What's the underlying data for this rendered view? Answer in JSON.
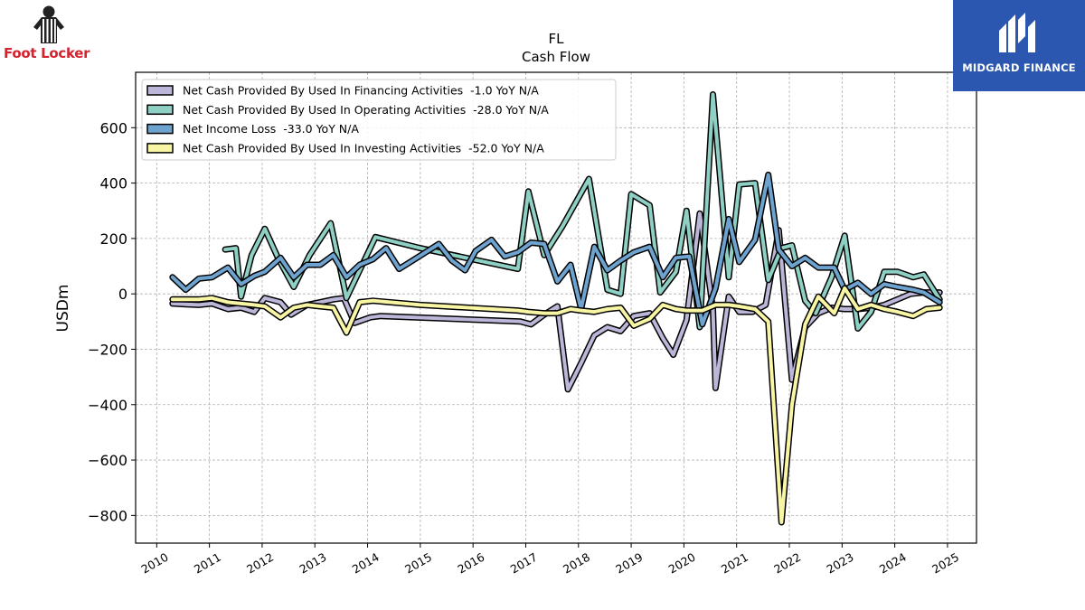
{
  "logos": {
    "left_brand": "Foot Locker",
    "right_brand": "MIDGARD FINANCE",
    "left_icon": "referee-mascot-icon",
    "right_icon": "midgard-m-icon"
  },
  "chart_data": {
    "type": "line",
    "title": "FL",
    "subtitle": "Cash Flow",
    "xlabel": "",
    "ylabel": "USDm",
    "xlim": [
      2009.6,
      2025.55
    ],
    "ylim": [
      -900,
      800
    ],
    "x_ticks": [
      "2010",
      "2011",
      "2012",
      "2013",
      "2014",
      "2015",
      "2016",
      "2017",
      "2018",
      "2019",
      "2020",
      "2021",
      "2022",
      "2023",
      "2024",
      "2025"
    ],
    "y_ticks": [
      -800,
      -600,
      -400,
      -200,
      0,
      200,
      400,
      600
    ],
    "y_tick_labels": [
      "−800",
      "−600",
      "−400",
      "−200",
      "0",
      "200",
      "400",
      "600"
    ],
    "grid": true,
    "legend_position": "top-left",
    "series": [
      {
        "name": "Net Cash Provided By Used In Financing Activities  -1.0 YoY N/A",
        "color": "#bcb6d8",
        "points": [
          [
            2010.3,
            -35
          ],
          [
            2010.55,
            -38
          ],
          [
            2010.8,
            -40
          ],
          [
            2011.05,
            -35
          ],
          [
            2011.35,
            -55
          ],
          [
            2011.6,
            -50
          ],
          [
            2011.85,
            -65
          ],
          [
            2012.05,
            -15
          ],
          [
            2012.35,
            -30
          ],
          [
            2012.55,
            -75
          ],
          [
            2012.85,
            -40
          ],
          [
            2013.1,
            -30
          ],
          [
            2013.35,
            -20
          ],
          [
            2013.55,
            -15
          ],
          [
            2013.75,
            -105
          ],
          [
            2014.05,
            -85
          ],
          [
            2014.25,
            -80
          ],
          [
            2016.9,
            -100
          ],
          [
            2017.1,
            -110
          ],
          [
            2017.35,
            -75
          ],
          [
            2017.6,
            -45
          ],
          [
            2017.8,
            -345
          ],
          [
            2018.05,
            -250
          ],
          [
            2018.3,
            -150
          ],
          [
            2018.55,
            -120
          ],
          [
            2018.8,
            -135
          ],
          [
            2019.05,
            -80
          ],
          [
            2019.35,
            -70
          ],
          [
            2019.6,
            -160
          ],
          [
            2019.8,
            -220
          ],
          [
            2020.05,
            -95
          ],
          [
            2020.3,
            290
          ],
          [
            2020.55,
            -55
          ],
          [
            2020.6,
            -340
          ],
          [
            2020.85,
            -10
          ],
          [
            2021.05,
            -65
          ],
          [
            2021.3,
            -65
          ],
          [
            2021.55,
            -40
          ],
          [
            2021.8,
            230
          ],
          [
            2022.05,
            -310
          ],
          [
            2022.3,
            -120
          ],
          [
            2022.55,
            -70
          ],
          [
            2022.8,
            -50
          ],
          [
            2023.05,
            -55
          ],
          [
            2023.3,
            -55
          ],
          [
            2023.55,
            -50
          ],
          [
            2023.8,
            -40
          ],
          [
            2024.05,
            -20
          ],
          [
            2024.3,
            0
          ],
          [
            2024.55,
            5
          ],
          [
            2024.85,
            5
          ]
        ]
      },
      {
        "name": "Net Cash Provided By Used In Operating Activities  -28.0 YoY N/A",
        "color": "#8fd0c4",
        "points": [
          [
            2011.3,
            160
          ],
          [
            2011.5,
            165
          ],
          [
            2011.6,
            -10
          ],
          [
            2011.8,
            140
          ],
          [
            2012.05,
            235
          ],
          [
            2012.3,
            130
          ],
          [
            2012.6,
            25
          ],
          [
            2012.9,
            140
          ],
          [
            2013.3,
            255
          ],
          [
            2013.6,
            -15
          ],
          [
            2014.15,
            205
          ],
          [
            2015.0,
            165
          ],
          [
            2016.85,
            90
          ],
          [
            2017.05,
            370
          ],
          [
            2017.35,
            140
          ],
          [
            2017.7,
            245
          ],
          [
            2018.2,
            415
          ],
          [
            2018.55,
            15
          ],
          [
            2018.8,
            0
          ],
          [
            2019.0,
            360
          ],
          [
            2019.35,
            320
          ],
          [
            2019.55,
            5
          ],
          [
            2019.85,
            80
          ],
          [
            2020.05,
            300
          ],
          [
            2020.3,
            -120
          ],
          [
            2020.55,
            720
          ],
          [
            2020.85,
            60
          ],
          [
            2021.05,
            395
          ],
          [
            2021.35,
            400
          ],
          [
            2021.6,
            50
          ],
          [
            2021.85,
            165
          ],
          [
            2022.05,
            175
          ],
          [
            2022.3,
            -25
          ],
          [
            2022.5,
            -70
          ],
          [
            2022.8,
            60
          ],
          [
            2023.05,
            210
          ],
          [
            2023.3,
            -125
          ],
          [
            2023.55,
            -65
          ],
          [
            2023.8,
            80
          ],
          [
            2024.05,
            80
          ],
          [
            2024.35,
            60
          ],
          [
            2024.55,
            70
          ],
          [
            2024.85,
            -20
          ]
        ]
      },
      {
        "name": "Net Income Loss  -33.0 YoY N/A",
        "color": "#6fa3cf",
        "points": [
          [
            2010.3,
            60
          ],
          [
            2010.55,
            15
          ],
          [
            2010.8,
            55
          ],
          [
            2011.05,
            60
          ],
          [
            2011.35,
            95
          ],
          [
            2011.6,
            35
          ],
          [
            2011.85,
            65
          ],
          [
            2012.05,
            80
          ],
          [
            2012.35,
            130
          ],
          [
            2012.6,
            60
          ],
          [
            2012.85,
            105
          ],
          [
            2013.1,
            105
          ],
          [
            2013.35,
            140
          ],
          [
            2013.6,
            60
          ],
          [
            2013.85,
            105
          ],
          [
            2014.1,
            125
          ],
          [
            2014.35,
            165
          ],
          [
            2014.6,
            90
          ],
          [
            2014.85,
            120
          ],
          [
            2015.1,
            150
          ],
          [
            2015.35,
            180
          ],
          [
            2015.6,
            120
          ],
          [
            2015.85,
            85
          ],
          [
            2016.05,
            155
          ],
          [
            2016.35,
            195
          ],
          [
            2016.6,
            135
          ],
          [
            2016.85,
            150
          ],
          [
            2017.1,
            185
          ],
          [
            2017.35,
            180
          ],
          [
            2017.6,
            45
          ],
          [
            2017.85,
            105
          ],
          [
            2018.05,
            -55
          ],
          [
            2018.3,
            170
          ],
          [
            2018.55,
            85
          ],
          [
            2018.8,
            120
          ],
          [
            2019.05,
            150
          ],
          [
            2019.35,
            170
          ],
          [
            2019.6,
            60
          ],
          [
            2019.85,
            130
          ],
          [
            2020.1,
            135
          ],
          [
            2020.35,
            -110
          ],
          [
            2020.6,
            20
          ],
          [
            2020.85,
            270
          ],
          [
            2021.05,
            115
          ],
          [
            2021.35,
            195
          ],
          [
            2021.6,
            430
          ],
          [
            2021.8,
            160
          ],
          [
            2022.05,
            100
          ],
          [
            2022.3,
            130
          ],
          [
            2022.55,
            95
          ],
          [
            2022.85,
            95
          ],
          [
            2023.05,
            15
          ],
          [
            2023.3,
            40
          ],
          [
            2023.55,
            0
          ],
          [
            2023.8,
            35
          ],
          [
            2024.05,
            25
          ],
          [
            2024.35,
            15
          ],
          [
            2024.55,
            5
          ],
          [
            2024.85,
            -30
          ]
        ]
      },
      {
        "name": "Net Cash Provided By Used In Investing Activities  -52.0 YoY N/A",
        "color": "#f8f5a4",
        "points": [
          [
            2010.3,
            -20
          ],
          [
            2010.55,
            -20
          ],
          [
            2010.8,
            -20
          ],
          [
            2011.05,
            -15
          ],
          [
            2011.35,
            -30
          ],
          [
            2011.6,
            -35
          ],
          [
            2011.85,
            -40
          ],
          [
            2012.05,
            -45
          ],
          [
            2012.35,
            -85
          ],
          [
            2012.6,
            -50
          ],
          [
            2012.85,
            -40
          ],
          [
            2013.1,
            -45
          ],
          [
            2013.35,
            -50
          ],
          [
            2013.6,
            -140
          ],
          [
            2013.85,
            -30
          ],
          [
            2014.1,
            -25
          ],
          [
            2015.0,
            -40
          ],
          [
            2016.85,
            -60
          ],
          [
            2017.05,
            -65
          ],
          [
            2017.35,
            -70
          ],
          [
            2017.6,
            -70
          ],
          [
            2017.85,
            -55
          ],
          [
            2018.05,
            -60
          ],
          [
            2018.3,
            -65
          ],
          [
            2018.55,
            -55
          ],
          [
            2018.8,
            -50
          ],
          [
            2019.05,
            -115
          ],
          [
            2019.35,
            -90
          ],
          [
            2019.6,
            -40
          ],
          [
            2019.85,
            -55
          ],
          [
            2020.05,
            -60
          ],
          [
            2020.35,
            -60
          ],
          [
            2020.6,
            -40
          ],
          [
            2020.85,
            -40
          ],
          [
            2021.05,
            -45
          ],
          [
            2021.35,
            -55
          ],
          [
            2021.6,
            -100
          ],
          [
            2021.85,
            -825
          ],
          [
            2022.05,
            -400
          ],
          [
            2022.3,
            -110
          ],
          [
            2022.55,
            -10
          ],
          [
            2022.85,
            -70
          ],
          [
            2023.05,
            20
          ],
          [
            2023.3,
            -55
          ],
          [
            2023.55,
            -40
          ],
          [
            2023.8,
            -55
          ],
          [
            2024.05,
            -65
          ],
          [
            2024.35,
            -80
          ],
          [
            2024.6,
            -55
          ],
          [
            2024.85,
            -50
          ]
        ]
      }
    ]
  }
}
